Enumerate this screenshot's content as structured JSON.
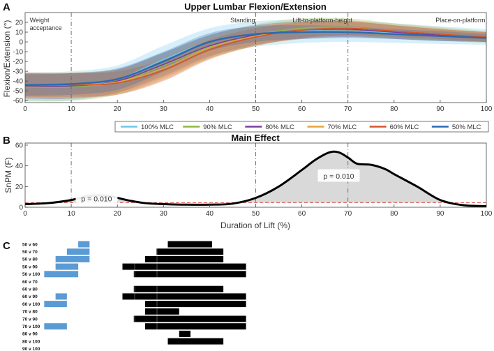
{
  "chart_data": [
    {
      "type": "line",
      "panel_letter": "A",
      "title": "Upper Lumbar Flexion/Extension",
      "ylabel": "Flexion/Extension (°)",
      "xlim": [
        0,
        100
      ],
      "ylim": [
        -62,
        30
      ],
      "x_ticks": [
        0,
        10,
        20,
        30,
        40,
        50,
        60,
        70,
        80,
        90,
        100
      ],
      "y_ticks": [
        -60,
        -50,
        -40,
        -30,
        -20,
        -10,
        0,
        10,
        20
      ],
      "phase_lines": [
        10,
        50,
        70
      ],
      "phases": [
        {
          "label": "Weight",
          "label2": "acceptance",
          "x": 1
        },
        {
          "label": "Standing",
          "x": 44.5
        },
        {
          "label": "Lift-to-platform-height",
          "x": 58
        },
        {
          "label": "Place-on-platform",
          "x": 89
        }
      ],
      "grid": false,
      "legend_position": "below",
      "x": [
        0,
        10,
        20,
        30,
        40,
        50,
        60,
        70,
        80,
        90,
        100
      ],
      "series": [
        {
          "name": "100% MLC",
          "color": "#6ec6ec",
          "values": [
            -46,
            -45,
            -38,
            -18,
            0,
            8,
            11,
            11,
            9,
            7,
            5
          ],
          "sd_width": [
            15,
            15,
            14,
            14,
            14,
            13,
            12,
            11,
            10,
            9,
            8
          ]
        },
        {
          "name": "90% MLC",
          "color": "#8fb84a",
          "values": [
            -46,
            -46,
            -41,
            -24,
            -5,
            7,
            14,
            15,
            11,
            8,
            5
          ],
          "sd_width": [
            14,
            14,
            13,
            13,
            12,
            11,
            10,
            9,
            8,
            7,
            6
          ]
        },
        {
          "name": "80% MLC",
          "color": "#7a3d9e",
          "values": [
            -45,
            -45,
            -40,
            -23,
            -4,
            7,
            12,
            13,
            10,
            7,
            5
          ],
          "sd_width": [
            13,
            13,
            12,
            12,
            11,
            10,
            9,
            8,
            7,
            6,
            5
          ]
        },
        {
          "name": "70% MLC",
          "color": "#e8a33a",
          "values": [
            -44,
            -44,
            -41,
            -27,
            -6,
            6,
            12,
            14,
            11,
            8,
            5
          ],
          "sd_width": [
            13,
            13,
            13,
            12,
            11,
            10,
            9,
            8,
            7,
            6,
            5
          ]
        },
        {
          "name": "60% MLC",
          "color": "#d2562a",
          "values": [
            -44,
            -44,
            -42,
            -29,
            -8,
            5,
            12,
            14,
            11,
            8,
            5
          ],
          "sd_width": [
            12,
            12,
            12,
            11,
            10,
            9,
            8,
            7,
            6,
            5,
            5
          ]
        },
        {
          "name": "50% MLC",
          "color": "#2a6ab0",
          "values": [
            -44,
            -43,
            -38,
            -20,
            0,
            8,
            10,
            10,
            8,
            6,
            4
          ],
          "sd_width": [
            11,
            11,
            11,
            10,
            9,
            8,
            7,
            6,
            5,
            5,
            4
          ]
        }
      ]
    },
    {
      "type": "area",
      "panel_letter": "B",
      "title": "Main Effect",
      "xlabel": "Duration of Lift (%)",
      "ylabel": "SnPM (F)",
      "xlim": [
        0,
        100
      ],
      "ylim": [
        0,
        62
      ],
      "x_ticks": [
        0,
        10,
        20,
        30,
        40,
        50,
        60,
        70,
        80,
        90,
        100
      ],
      "y_ticks": [
        0,
        20,
        40,
        60
      ],
      "phase_lines": [
        10,
        50,
        70
      ],
      "threshold": 4.5,
      "grid": false,
      "x": [
        0,
        5,
        10,
        14,
        18,
        22,
        26,
        30,
        35,
        40,
        45,
        50,
        55,
        60,
        63,
        66,
        68,
        70,
        72,
        75,
        78,
        80,
        85,
        90,
        95,
        100
      ],
      "values": [
        3,
        4,
        7,
        11,
        11,
        7,
        4,
        3,
        2.5,
        2.5,
        3.5,
        9,
        20,
        36,
        46,
        53,
        53,
        48,
        42,
        41,
        37,
        32,
        20,
        7,
        2,
        1
      ],
      "annotations": [
        {
          "text": "p = 0.010",
          "x": 15.5,
          "y": 8
        },
        {
          "text": "p = 0.010",
          "x": 68,
          "y": 30
        }
      ]
    },
    {
      "type": "table",
      "panel_letter": "C",
      "description_free": true,
      "xlim": [
        0,
        100
      ],
      "comparisons": [
        {
          "label": "50 v 60",
          "blue": [
            [
              49,
              59
            ]
          ],
          "black": [
            [
              128,
              167
            ]
          ]
        },
        {
          "label": "50 v 70",
          "blue": [
            [
              39,
              59
            ]
          ],
          "black": [
            [
              118,
              177
            ]
          ]
        },
        {
          "label": "50 v 80",
          "blue": [
            [
              29,
              59
            ]
          ],
          "black": [
            [
              108,
              177
            ]
          ]
        },
        {
          "label": "50 v 90",
          "blue": [
            [
              29,
              49
            ]
          ],
          "black": [
            [
              88,
              197
            ]
          ]
        },
        {
          "label": "50 v 100",
          "blue": [
            [
              19,
              49
            ]
          ],
          "black": [
            [
              98,
              197
            ]
          ]
        },
        {
          "label": "60 v 70",
          "blue": [],
          "black": []
        },
        {
          "label": "60 v 80",
          "blue": [],
          "black": [
            [
              98,
              177
            ]
          ]
        },
        {
          "label": "60 v 90",
          "blue": [
            [
              29,
              39
            ]
          ],
          "black": [
            [
              88,
              197
            ]
          ]
        },
        {
          "label": "60 v 100",
          "blue": [
            [
              19,
              39
            ]
          ],
          "black": [
            [
              108,
              197
            ]
          ]
        },
        {
          "label": "70 v 80",
          "blue": [],
          "black": [
            [
              108,
              138
            ]
          ]
        },
        {
          "label": "70 v 90",
          "blue": [],
          "black": [
            [
              98,
              197
            ]
          ]
        },
        {
          "label": "70 v 100",
          "blue": [
            [
              19,
              39
            ]
          ],
          "black": [
            [
              108,
              197
            ]
          ]
        },
        {
          "label": "80 v 90",
          "blue": [],
          "black": [
            [
              138,
              148
            ]
          ]
        },
        {
          "label": "80 v 100",
          "blue": [],
          "black": [
            [
              128,
              177
            ]
          ]
        },
        {
          "label": "90 v 100",
          "blue": [],
          "black": []
        }
      ]
    }
  ]
}
